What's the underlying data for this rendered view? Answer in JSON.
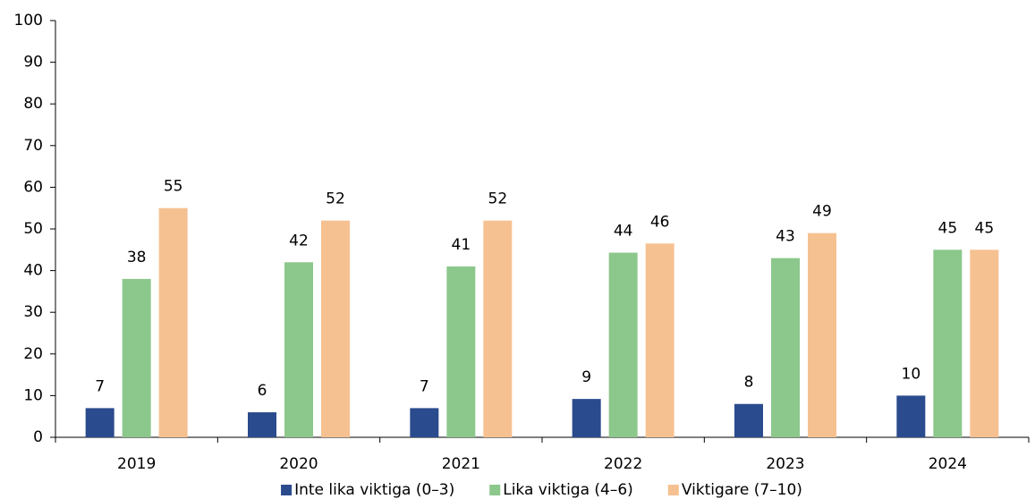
{
  "chart_data": {
    "type": "bar",
    "categories": [
      "2019",
      "2020",
      "2021",
      "2022",
      "2023",
      "2024"
    ],
    "series": [
      {
        "name": "Inte lika viktiga (0–3)",
        "color": "#2a4b8d",
        "values": [
          7,
          6,
          7,
          9.2,
          8,
          10
        ],
        "value_labels": [
          "7",
          "6",
          "7",
          "9",
          "8",
          "10"
        ]
      },
      {
        "name": "Lika viktiga (4–6)",
        "color": "#8cc78c",
        "values": [
          38,
          42,
          41,
          44.3,
          43,
          45
        ],
        "value_labels": [
          "38",
          "42",
          "41",
          "44",
          "43",
          "45"
        ]
      },
      {
        "name": "Viktigare (7–10)",
        "color": "#f6c191",
        "values": [
          55,
          52,
          52,
          46.5,
          49,
          45
        ],
        "value_labels": [
          "55",
          "52",
          "52",
          "46",
          "49",
          "45"
        ]
      }
    ],
    "ylim": [
      0,
      100
    ],
    "yticks": [
      0,
      10,
      20,
      30,
      40,
      50,
      60,
      70,
      80,
      90,
      100
    ],
    "grid": false,
    "legend": "bottom"
  }
}
